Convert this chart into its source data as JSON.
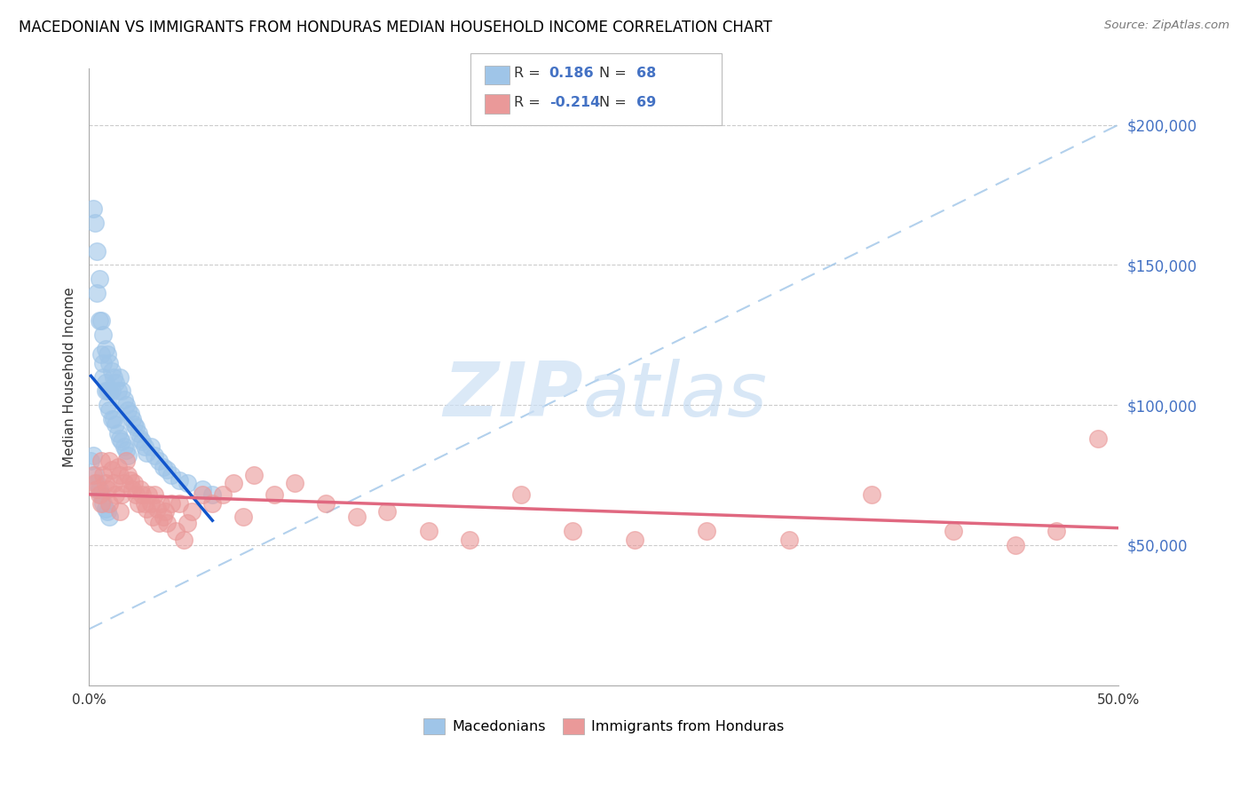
{
  "title": "MACEDONIAN VS IMMIGRANTS FROM HONDURAS MEDIAN HOUSEHOLD INCOME CORRELATION CHART",
  "source": "Source: ZipAtlas.com",
  "ylabel": "Median Household Income",
  "xlim": [
    0.0,
    0.5
  ],
  "ylim": [
    0,
    220000
  ],
  "legend_macedonian": "Macedonians",
  "legend_honduran": "Immigrants from Honduras",
  "R_macedonian": "0.186",
  "N_macedonian": "68",
  "R_honduran": "-0.214",
  "N_honduran": "69",
  "macedonian_color": "#9fc5e8",
  "honduran_color": "#ea9999",
  "macedonian_line_color": "#1155cc",
  "honduran_line_color": "#e06880",
  "diagonal_color": "#9fc5e8",
  "macedonian_x": [
    0.001,
    0.002,
    0.002,
    0.003,
    0.003,
    0.004,
    0.004,
    0.004,
    0.005,
    0.005,
    0.005,
    0.006,
    0.006,
    0.006,
    0.007,
    0.007,
    0.007,
    0.007,
    0.008,
    0.008,
    0.008,
    0.008,
    0.009,
    0.009,
    0.009,
    0.009,
    0.01,
    0.01,
    0.01,
    0.01,
    0.011,
    0.011,
    0.011,
    0.012,
    0.012,
    0.013,
    0.013,
    0.014,
    0.014,
    0.015,
    0.015,
    0.016,
    0.016,
    0.017,
    0.017,
    0.018,
    0.018,
    0.019,
    0.019,
    0.02,
    0.021,
    0.022,
    0.023,
    0.024,
    0.025,
    0.026,
    0.027,
    0.028,
    0.03,
    0.032,
    0.034,
    0.036,
    0.038,
    0.04,
    0.044,
    0.048,
    0.055,
    0.06
  ],
  "macedonian_y": [
    80000,
    170000,
    82000,
    165000,
    75000,
    155000,
    140000,
    72000,
    145000,
    130000,
    70000,
    130000,
    118000,
    68000,
    125000,
    115000,
    110000,
    65000,
    120000,
    108000,
    105000,
    63000,
    118000,
    105000,
    100000,
    62000,
    115000,
    105000,
    98000,
    60000,
    112000,
    105000,
    95000,
    110000,
    95000,
    108000,
    93000,
    105000,
    90000,
    110000,
    88000,
    105000,
    87000,
    102000,
    85000,
    100000,
    84000,
    98000,
    82000,
    97000,
    95000,
    93000,
    92000,
    90000,
    88000,
    87000,
    85000,
    83000,
    85000,
    82000,
    80000,
    78000,
    77000,
    75000,
    73000,
    72000,
    70000,
    68000
  ],
  "honduran_x": [
    0.002,
    0.003,
    0.004,
    0.005,
    0.006,
    0.006,
    0.007,
    0.008,
    0.009,
    0.01,
    0.01,
    0.011,
    0.012,
    0.013,
    0.014,
    0.015,
    0.015,
    0.016,
    0.017,
    0.018,
    0.019,
    0.02,
    0.021,
    0.022,
    0.023,
    0.024,
    0.025,
    0.026,
    0.027,
    0.028,
    0.029,
    0.03,
    0.031,
    0.032,
    0.033,
    0.034,
    0.035,
    0.036,
    0.037,
    0.038,
    0.04,
    0.042,
    0.044,
    0.046,
    0.048,
    0.05,
    0.055,
    0.06,
    0.065,
    0.07,
    0.075,
    0.08,
    0.09,
    0.1,
    0.115,
    0.13,
    0.145,
    0.165,
    0.185,
    0.21,
    0.235,
    0.265,
    0.3,
    0.34,
    0.38,
    0.42,
    0.45,
    0.47,
    0.49
  ],
  "honduran_y": [
    75000,
    72000,
    70000,
    68000,
    80000,
    65000,
    75000,
    72000,
    70000,
    80000,
    65000,
    77000,
    72000,
    68000,
    78000,
    75000,
    62000,
    68000,
    72000,
    80000,
    75000,
    73000,
    70000,
    72000,
    68000,
    65000,
    70000,
    68000,
    65000,
    63000,
    68000,
    65000,
    60000,
    68000,
    63000,
    58000,
    65000,
    60000,
    62000,
    58000,
    65000,
    55000,
    65000,
    52000,
    58000,
    62000,
    68000,
    65000,
    68000,
    72000,
    60000,
    75000,
    68000,
    72000,
    65000,
    60000,
    62000,
    55000,
    52000,
    68000,
    55000,
    52000,
    55000,
    52000,
    68000,
    55000,
    50000,
    55000,
    88000
  ]
}
